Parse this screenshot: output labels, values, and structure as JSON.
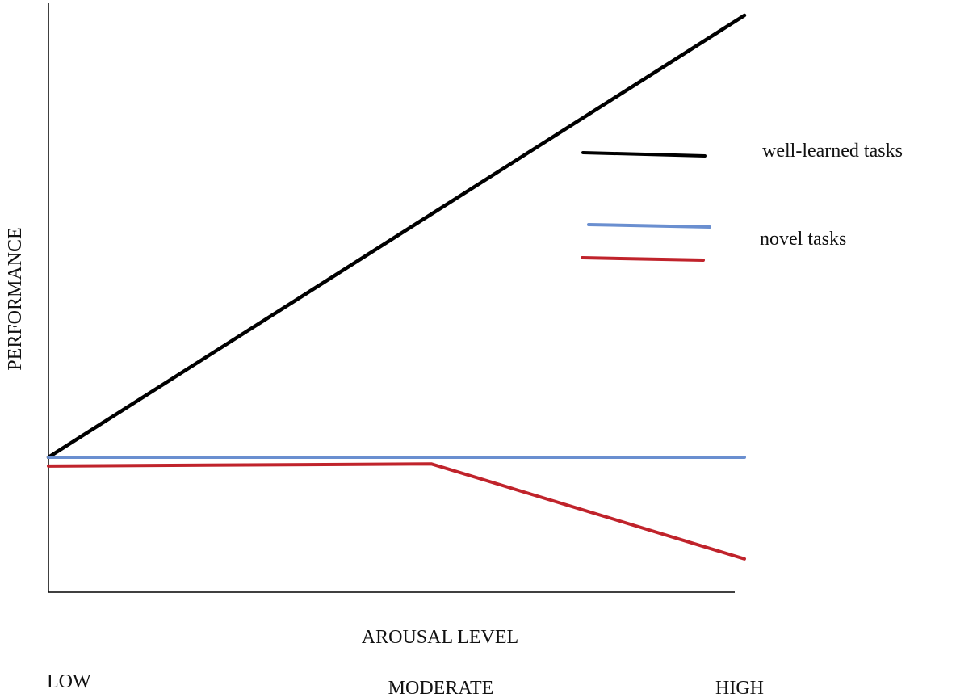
{
  "chart_data": {
    "type": "line",
    "title": "",
    "xlabel": "AROUSAL LEVEL",
    "ylabel": "PERFORMANCE",
    "categories": [
      "LOW",
      "MODERATE",
      "HIGH"
    ],
    "x": [
      0,
      0.55,
      1
    ],
    "xlim": [
      0,
      1
    ],
    "ylim": [
      -0.3,
      1
    ],
    "grid": false,
    "legend_position": "right",
    "series": [
      {
        "name": "well-learned tasks",
        "color": "#000000",
        "x": [
          0,
          1
        ],
        "values": [
          0,
          1
        ]
      },
      {
        "name": "",
        "color": "#6a8fd0",
        "x": [
          0,
          1
        ],
        "values": [
          0,
          0
        ]
      },
      {
        "name": "novel tasks",
        "color": "#c0232b",
        "x": [
          0,
          0.55,
          1
        ],
        "values": [
          -0.02,
          -0.015,
          -0.23
        ]
      }
    ]
  }
}
